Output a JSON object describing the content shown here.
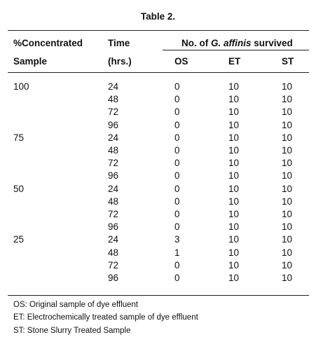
{
  "title": "Table 2.",
  "header": {
    "sample_line1": "%Concentrated",
    "sample_line2": "Sample",
    "time_line1": "Time",
    "time_line2": "(hrs.)",
    "survived_prefix": "No. of ",
    "survived_species": "G. affinis",
    "survived_suffix": " survived",
    "os": "OS",
    "et": "ET",
    "st": "ST"
  },
  "groups": [
    {
      "sample": "100",
      "rows": [
        {
          "time": "24",
          "os": "0",
          "et": "10",
          "st": "10"
        },
        {
          "time": "48",
          "os": "0",
          "et": "10",
          "st": "10"
        },
        {
          "time": "72",
          "os": "0",
          "et": "10",
          "st": "10"
        },
        {
          "time": "96",
          "os": "0",
          "et": "10",
          "st": "10"
        }
      ]
    },
    {
      "sample": "75",
      "rows": [
        {
          "time": "24",
          "os": "0",
          "et": "10",
          "st": "10"
        },
        {
          "time": "48",
          "os": "0",
          "et": "10",
          "st": "10"
        },
        {
          "time": "72",
          "os": "0",
          "et": "10",
          "st": "10"
        },
        {
          "time": "96",
          "os": "0",
          "et": "10",
          "st": "10"
        }
      ]
    },
    {
      "sample": "50",
      "rows": [
        {
          "time": "24",
          "os": "0",
          "et": "10",
          "st": "10"
        },
        {
          "time": "48",
          "os": "0",
          "et": "10",
          "st": "10"
        },
        {
          "time": "72",
          "os": "0",
          "et": "10",
          "st": "10"
        },
        {
          "time": "96",
          "os": "0",
          "et": "10",
          "st": "10"
        }
      ]
    },
    {
      "sample": "25",
      "rows": [
        {
          "time": "24",
          "os": "3",
          "et": "10",
          "st": "10"
        },
        {
          "time": "48",
          "os": "1",
          "et": "10",
          "st": "10"
        },
        {
          "time": "72",
          "os": "0",
          "et": "10",
          "st": "10"
        },
        {
          "time": "96",
          "os": "0",
          "et": "10",
          "st": "10"
        }
      ]
    }
  ],
  "footnotes": [
    "OS: Original sample of dye effluent",
    "ET: Electrochemically treated sample of dye effluent",
    "ST: Stone Slurry Treated Sample"
  ]
}
